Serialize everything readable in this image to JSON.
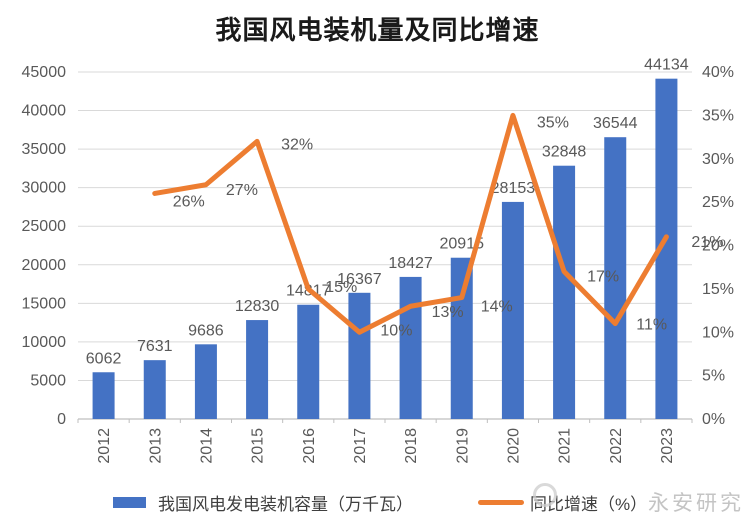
{
  "title": "我国风电装机量及同比增速",
  "chart_data": {
    "type": "bar+line combo",
    "title": "我国风电装机量及同比增速",
    "categories": [
      "2012",
      "2013",
      "2014",
      "2015",
      "2016",
      "2017",
      "2018",
      "2019",
      "2020",
      "2021",
      "2022",
      "2023"
    ],
    "series": [
      {
        "name": "我国风电发电装机容量（万千瓦）",
        "type": "bar",
        "axis": "left",
        "color": "#4472C4",
        "values": [
          6062,
          7631,
          9686,
          12830,
          14817,
          16367,
          18427,
          20915,
          28153,
          32848,
          36544,
          44134
        ],
        "data_labels": [
          "6062",
          "7631",
          "9686",
          "12830",
          "14817",
          "16367",
          "18427",
          "20915",
          "28153",
          "32848",
          "36544",
          "44134"
        ]
      },
      {
        "name": "同比增速（%）",
        "type": "line",
        "axis": "right",
        "color": "#ED7D31",
        "values": [
          null,
          26,
          27,
          32,
          15,
          10,
          13,
          14,
          35,
          17,
          11,
          21
        ],
        "data_labels": [
          null,
          "26%",
          "27%",
          "32%",
          "15%",
          "10%",
          "13%",
          "14%",
          "35%",
          "17%",
          "11%",
          "21%"
        ]
      }
    ],
    "left_axis": {
      "min": 0,
      "max": 45000,
      "step": 5000,
      "ticks": [
        "0",
        "5000",
        "10000",
        "15000",
        "20000",
        "25000",
        "30000",
        "35000",
        "40000",
        "45000"
      ]
    },
    "right_axis": {
      "min": 0,
      "max": 40,
      "step": 5,
      "ticks": [
        "0%",
        "5%",
        "10%",
        "15%",
        "20%",
        "25%",
        "30%",
        "35%",
        "40%"
      ]
    },
    "grid": true,
    "legend_position": "bottom",
    "x_labels_rotated": true
  },
  "legend": {
    "items": [
      {
        "label": "我国风电发电装机容量（万千瓦）",
        "swatch": "bar",
        "color": "#4472C4"
      },
      {
        "label": "同比增速（%）",
        "swatch": "line",
        "color": "#ED7D31"
      }
    ]
  },
  "watermark": {
    "logo": "circle-logo",
    "text": "永安研究"
  },
  "colors": {
    "bar": "#4472C4",
    "line": "#ED7D31",
    "gridline": "#D9D9D9",
    "axis_line": "#BFBFBF",
    "tick_label": "#595959",
    "data_label": "#595959",
    "title": "#1a1a1a",
    "watermark": "#c4c4c4"
  }
}
